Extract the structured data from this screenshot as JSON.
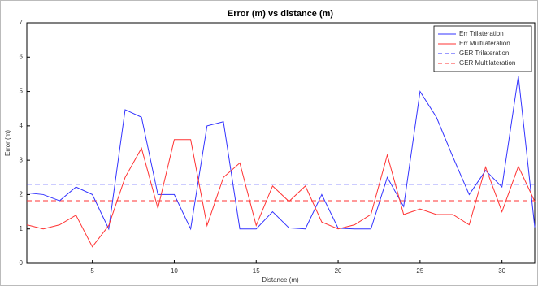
{
  "chart_data": {
    "type": "line",
    "title": "Error (m) vs distance (m)",
    "x_label": "Distance (m)",
    "y_label": "Error (m)",
    "x": [
      1,
      2,
      3,
      4,
      5,
      6,
      7,
      8,
      9,
      10,
      11,
      12,
      13,
      14,
      15,
      16,
      17,
      18,
      19,
      20,
      21,
      22,
      23,
      24,
      25,
      26,
      27,
      28,
      29,
      30,
      31,
      32
    ],
    "series": [
      {
        "name": "Err Trilateration",
        "color": "#3333ff",
        "values": [
          2.05,
          2.0,
          1.82,
          2.22,
          2.0,
          1.0,
          4.47,
          4.25,
          2.0,
          2.0,
          1.0,
          4.0,
          4.12,
          1.0,
          1.0,
          1.5,
          1.03,
          1.0,
          2.0,
          1.02,
          1.0,
          1.0,
          2.5,
          1.65,
          5.0,
          4.25,
          3.1,
          2.0,
          2.7,
          2.22,
          5.45,
          1.05
        ]
      },
      {
        "name": "Err Multilateration",
        "color": "#ff3333",
        "values": [
          1.12,
          1.0,
          1.12,
          1.4,
          0.48,
          1.1,
          2.5,
          3.35,
          1.6,
          3.6,
          3.6,
          1.1,
          2.5,
          2.92,
          1.1,
          2.25,
          1.8,
          2.25,
          1.2,
          1.0,
          1.12,
          1.42,
          3.15,
          1.42,
          1.58,
          1.42,
          1.42,
          1.12,
          2.8,
          1.5,
          2.82,
          1.8
        ]
      }
    ],
    "reference_lines": [
      {
        "name": "GER Trilateration",
        "color": "#3333ff",
        "value": 2.3,
        "dashed": true
      },
      {
        "name": "GER Multilateration",
        "color": "#ff3333",
        "value": 1.82,
        "dashed": true
      }
    ],
    "xlim": [
      1,
      32
    ],
    "xticks": [
      5,
      10,
      15,
      20,
      25,
      30
    ],
    "ylim": [
      0,
      7
    ],
    "yticks": [
      0,
      1,
      2,
      3,
      4,
      5,
      6,
      7
    ],
    "legend": "top-right"
  }
}
